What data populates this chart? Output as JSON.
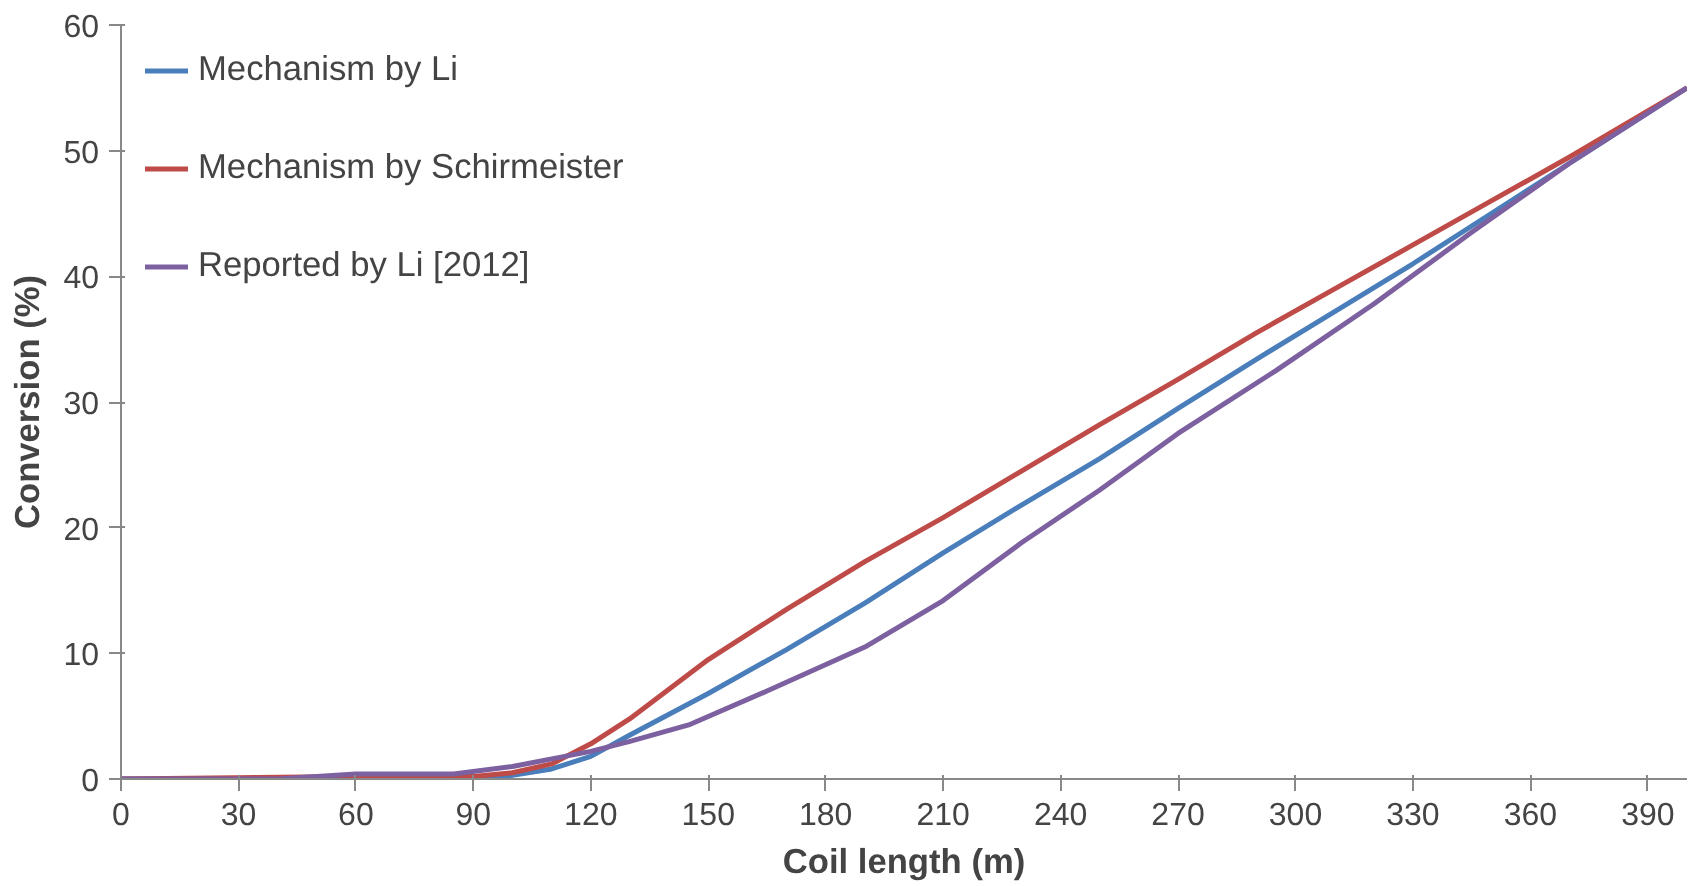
{
  "chart_data": {
    "type": "line",
    "xlabel": "Coil length (m)",
    "ylabel": "Conversion (%)",
    "xlim": [
      0,
      400
    ],
    "xticks": [
      0,
      30,
      60,
      90,
      120,
      150,
      180,
      210,
      240,
      270,
      300,
      330,
      360,
      390
    ],
    "ylim": [
      0,
      60
    ],
    "yticks": [
      0,
      10,
      20,
      30,
      40,
      50,
      60
    ],
    "grid": false,
    "legend": "top left",
    "line_style": "solid",
    "series": [
      {
        "name": "Mechanism by Li",
        "color": "#4a7ebb",
        "x": [
          0,
          90,
          100,
          110,
          120,
          130,
          150,
          170,
          190,
          210,
          230,
          250,
          270,
          290,
          310,
          330,
          350,
          370,
          400
        ],
        "values": [
          0,
          0,
          0.3,
          0.8,
          1.8,
          3.5,
          6.8,
          10.3,
          14.0,
          18.0,
          21.8,
          25.5,
          29.5,
          33.4,
          37.2,
          41.0,
          45.0,
          49.0,
          55
        ]
      },
      {
        "name": "Mechanism by Schirmeister",
        "color": "#be4b48",
        "x": [
          0,
          60,
          90,
          100,
          110,
          120,
          130,
          150,
          170,
          190,
          210,
          230,
          250,
          270,
          290,
          310,
          330,
          350,
          370,
          400
        ],
        "values": [
          0,
          0.2,
          0.2,
          0.5,
          1.2,
          2.8,
          4.8,
          9.5,
          13.5,
          17.3,
          20.8,
          24.5,
          28.2,
          31.8,
          35.5,
          39.0,
          42.5,
          46.0,
          49.5,
          55
        ]
      },
      {
        "name": "Reported by Li [2012]",
        "color": "#7d60a0",
        "x": [
          0,
          40,
          60,
          85,
          100,
          110,
          120,
          130,
          145,
          165,
          190,
          210,
          230,
          250,
          270,
          295,
          320,
          345,
          370,
          400
        ],
        "values": [
          0,
          0,
          0.4,
          0.4,
          1.0,
          1.6,
          2.2,
          3.0,
          4.3,
          7.0,
          10.5,
          14.2,
          18.8,
          23.0,
          27.5,
          32.5,
          37.8,
          43.5,
          49.0,
          55
        ]
      }
    ]
  }
}
